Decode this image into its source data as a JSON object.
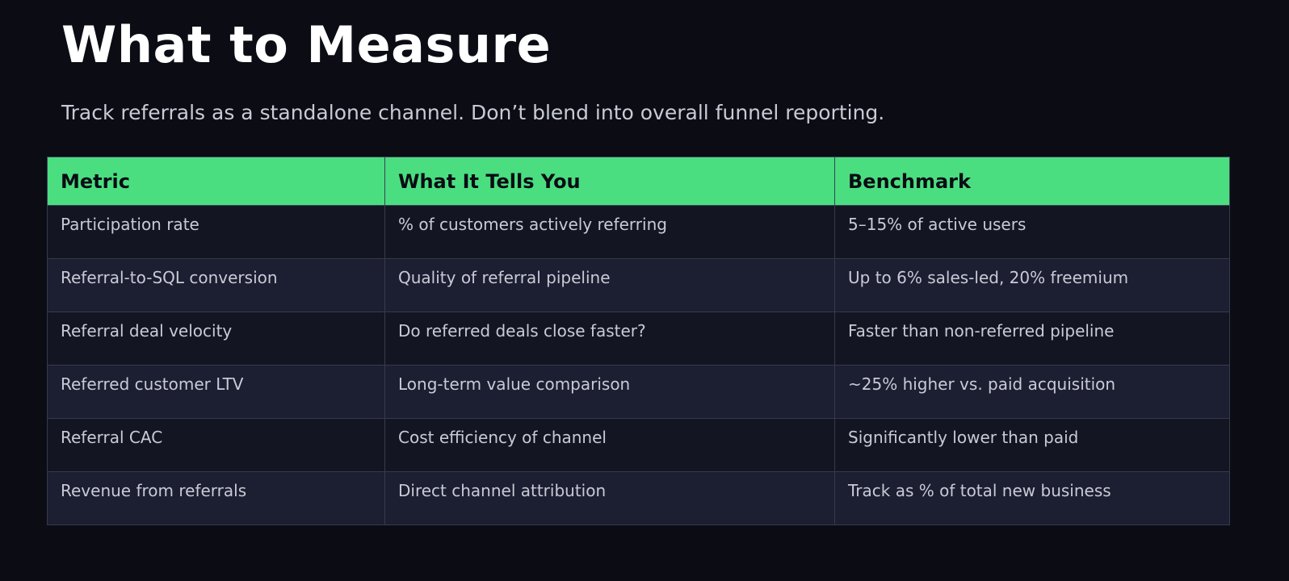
{
  "slide": {
    "title": "What to Measure",
    "subtitle": "Track referrals as a standalone channel. Don’t blend into overall funnel reporting."
  },
  "table": {
    "headers": [
      "Metric",
      "What It Tells You",
      "Benchmark"
    ],
    "rows": [
      [
        "Participation rate",
        "% of customers actively referring",
        "5–15% of active users"
      ],
      [
        "Referral-to-SQL conversion",
        "Quality of referral pipeline",
        "Up to 6% sales-led, 20% freemium"
      ],
      [
        "Referral deal velocity",
        "Do referred deals close faster?",
        "Faster than non-referred pipeline"
      ],
      [
        "Referred customer LTV",
        "Long-term value comparison",
        "~25% higher vs. paid acquisition"
      ],
      [
        "Referral CAC",
        "Cost efficiency of channel",
        "Significantly lower than paid"
      ],
      [
        "Revenue from referrals",
        "Direct channel attribution",
        "Track as % of total new business"
      ]
    ]
  },
  "colors": {
    "background": "#0b0c14",
    "header_accent": "#4ade80",
    "row_dark": "#141522",
    "row_light": "#1c1e31",
    "title_text": "#ffffff",
    "body_text": "#c8cbd6"
  }
}
